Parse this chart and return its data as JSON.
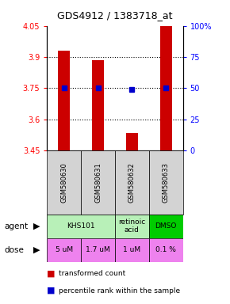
{
  "title": "GDS4912 / 1383718_at",
  "samples": [
    "GSM580630",
    "GSM580631",
    "GSM580632",
    "GSM580633"
  ],
  "bar_values": [
    3.93,
    3.885,
    3.535,
    4.05
  ],
  "bar_bottom": 3.45,
  "percentile_values": [
    3.75,
    3.75,
    3.745,
    3.75
  ],
  "ylim_left": [
    3.45,
    4.05
  ],
  "yticks_left": [
    3.45,
    3.6,
    3.75,
    3.9,
    4.05
  ],
  "yticks_right": [
    0,
    25,
    50,
    75,
    100
  ],
  "ytick_labels_left": [
    "3.45",
    "3.6",
    "3.75",
    "3.9",
    "4.05"
  ],
  "ytick_labels_right": [
    "0",
    "25",
    "50",
    "75",
    "100%"
  ],
  "hlines": [
    3.9,
    3.75,
    3.6
  ],
  "bar_color": "#cc0000",
  "percentile_color": "#0000cc",
  "agent_info": [
    [
      0,
      2,
      "KHS101",
      "#b8f0b8"
    ],
    [
      2,
      3,
      "retinoic\nacid",
      "#b8f0b8"
    ],
    [
      3,
      4,
      "DMSO",
      "#00cc00"
    ]
  ],
  "dose_labels": [
    "5 uM",
    "1.7 uM",
    "1 uM",
    "0.1 %"
  ],
  "dose_color": "#ee82ee",
  "sample_bg_color": "#d3d3d3",
  "legend_red_label": "transformed count",
  "legend_blue_label": "percentile rank within the sample",
  "xlabel_agent": "agent",
  "xlabel_dose": "dose"
}
